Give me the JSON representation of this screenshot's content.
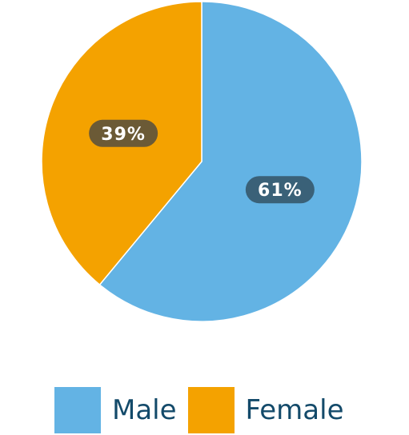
{
  "chart_data": {
    "type": "pie",
    "title": "",
    "slices": [
      {
        "name": "Male",
        "value": 61,
        "label": "61%",
        "color": "#63b3e4",
        "label_bg": "#3a6178"
      },
      {
        "name": "Female",
        "value": 39,
        "label": "39%",
        "color": "#f4a200",
        "label_bg": "#6b5a36"
      }
    ],
    "start": "top",
    "direction": "clockwise",
    "legend": {
      "position": "bottom",
      "items": [
        {
          "name": "Male",
          "color": "#63b3e4"
        },
        {
          "name": "Female",
          "color": "#f4a200"
        }
      ]
    }
  }
}
